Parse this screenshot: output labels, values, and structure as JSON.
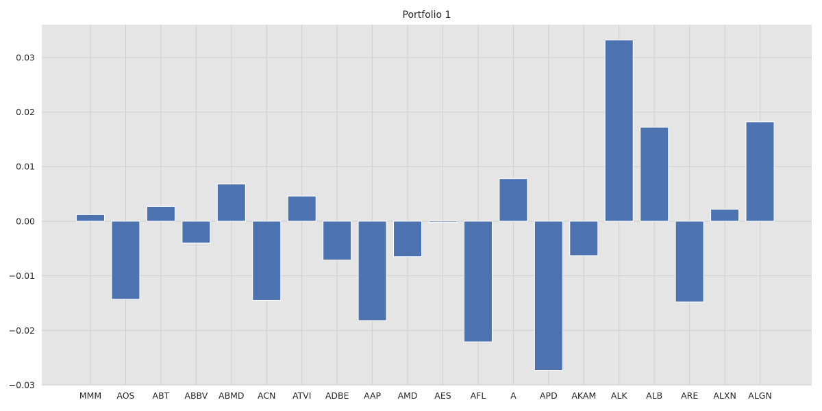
{
  "chart_data": {
    "type": "bar",
    "title": "Portfolio 1",
    "xlabel": "",
    "ylabel": "",
    "categories": [
      "MMM",
      "AOS",
      "ABT",
      "ABBV",
      "ABMD",
      "ACN",
      "ATVI",
      "ADBE",
      "AAP",
      "AMD",
      "AES",
      "AFL",
      "A",
      "APD",
      "AKAM",
      "ALK",
      "ALB",
      "ARE",
      "ALXN",
      "ALGN"
    ],
    "values": [
      0.0012,
      -0.0143,
      0.0027,
      -0.004,
      0.0068,
      -0.0145,
      0.0046,
      -0.0071,
      -0.0182,
      -0.0065,
      -0.0002,
      -0.0221,
      0.0078,
      -0.0273,
      -0.0063,
      0.0332,
      0.0172,
      -0.0148,
      0.0022,
      0.0182
    ],
    "ylim": [
      -0.03,
      0.036
    ],
    "yticks": [
      -0.03,
      -0.02,
      -0.01,
      0.0,
      0.01,
      0.02,
      0.03
    ],
    "ytick_labels": [
      "−0.03",
      "−0.02",
      "−0.01",
      "0.00",
      "0.01",
      "0.02",
      "0.03"
    ],
    "grid": true,
    "background": "#e5e5e5",
    "bar_color": "#4c72b0"
  }
}
